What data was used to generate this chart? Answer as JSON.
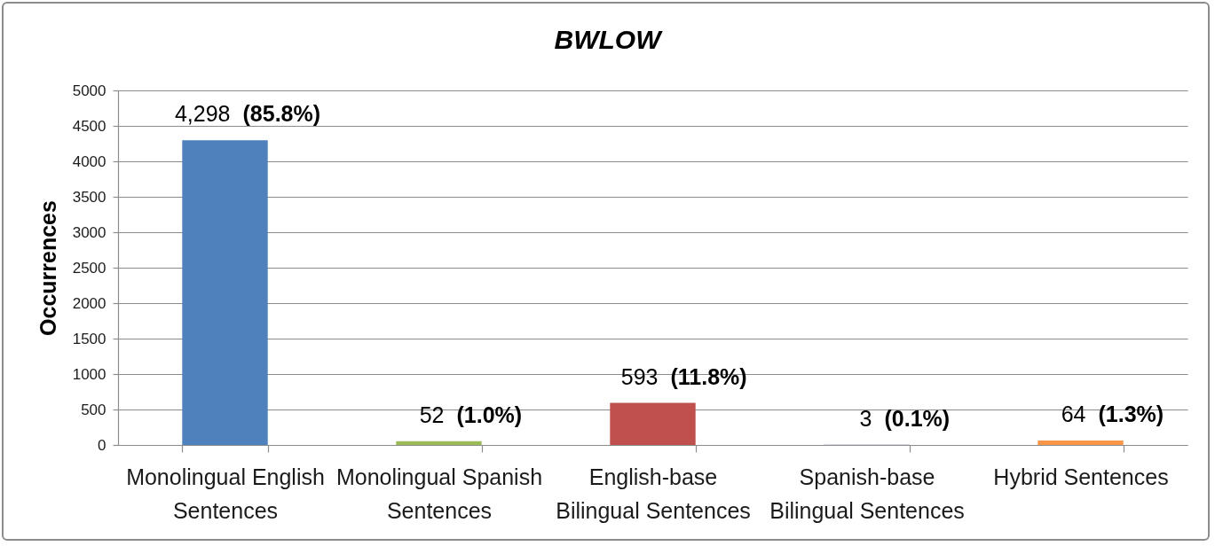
{
  "chart_data": {
    "type": "bar",
    "title": "BWLOW",
    "ylabel": "Occurrences",
    "categories": [
      "Monolingual English Sentences",
      "Monolingual Spanish Sentences",
      "English-base Bilingual Sentences",
      "Spanish-base Bilingual Sentences",
      "Hybrid Sentences"
    ],
    "values": [
      4298,
      52,
      593,
      3,
      64
    ],
    "colors": [
      "#4f81bd",
      "#9bbb59",
      "#c0504d",
      "#8064a2",
      "#f79646"
    ],
    "value_labels": [
      "4,298",
      "52",
      "593",
      "3",
      "64"
    ],
    "annotations": [
      {
        "text": "(85.8%)",
        "x": "Monolingual English Sentences",
        "y": 4298
      },
      {
        "text": "(1.0%)",
        "x": "Monolingual Spanish Sentences",
        "y": 52
      },
      {
        "text": "(11.8%)",
        "x": "English-base Bilingual Sentences",
        "y": 593
      },
      {
        "text": "(0.1%)",
        "x": "Spanish-base Bilingual Sentences",
        "y": 3
      },
      {
        "text": "(1.3%)",
        "x": "Hybrid Sentences",
        "y": 64
      }
    ],
    "ylim": [
      0,
      5000
    ],
    "yticks": [
      0,
      500,
      1000,
      1500,
      2000,
      2500,
      3000,
      3500,
      4000,
      4500,
      5000
    ],
    "grid": "y"
  }
}
